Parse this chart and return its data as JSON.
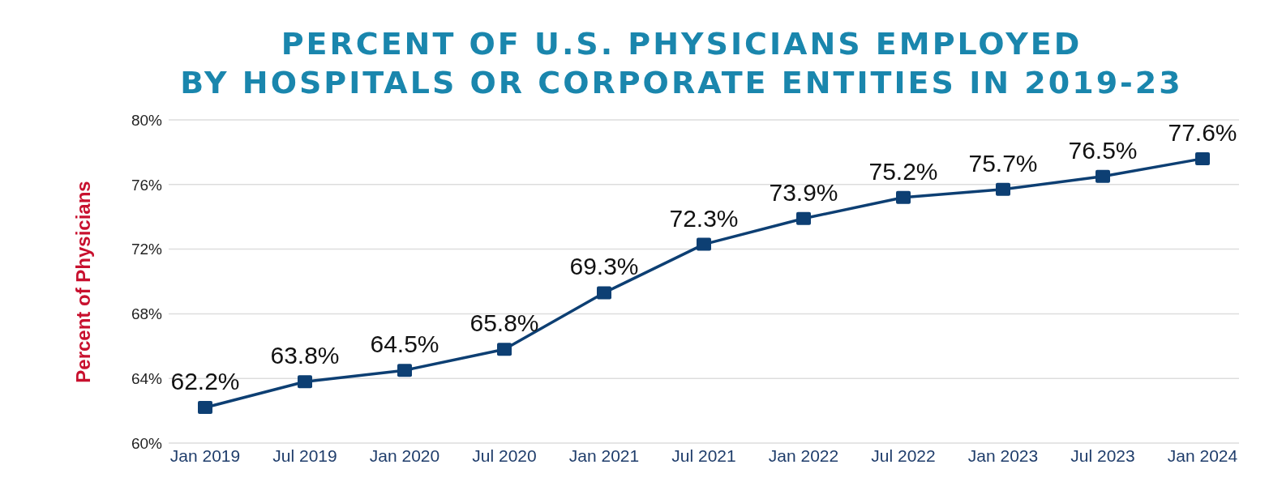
{
  "chart_data": {
    "type": "line",
    "title": "PERCENT OF U.S. PHYSICIANS EMPLOYED\nBY HOSPITALS OR CORPORATE ENTITIES IN 2019-23",
    "ylabel": "Percent of Physicians",
    "categories": [
      "Jan 2019",
      "Jul 2019",
      "Jan 2020",
      "Jul 2020",
      "Jan 2021",
      "Jul 2021",
      "Jan 2022",
      "Jul 2022",
      "Jan 2023",
      "Jul 2023",
      "Jan 2024"
    ],
    "series": [
      {
        "color": "#0d3f73",
        "values": [
          62.2,
          63.8,
          64.5,
          65.8,
          69.3,
          72.3,
          73.9,
          75.2,
          75.7,
          76.5,
          77.6
        ],
        "value_labels": [
          "62.2%",
          "63.8%",
          "64.5%",
          "65.8%",
          "69.3%",
          "72.3%",
          "73.9%",
          "75.2%",
          "75.7%",
          "76.5%",
          "77.6%"
        ]
      }
    ],
    "ylim": [
      60,
      80
    ],
    "yticks": [
      {
        "value": 60,
        "label": "60%"
      },
      {
        "value": 64,
        "label": "64%"
      },
      {
        "value": 68,
        "label": "68%"
      },
      {
        "value": 72,
        "label": "72%"
      },
      {
        "value": 76,
        "label": "76%"
      },
      {
        "value": 80,
        "label": "80%"
      }
    ],
    "grid": "y",
    "marker": "square",
    "line_style": "solid"
  }
}
